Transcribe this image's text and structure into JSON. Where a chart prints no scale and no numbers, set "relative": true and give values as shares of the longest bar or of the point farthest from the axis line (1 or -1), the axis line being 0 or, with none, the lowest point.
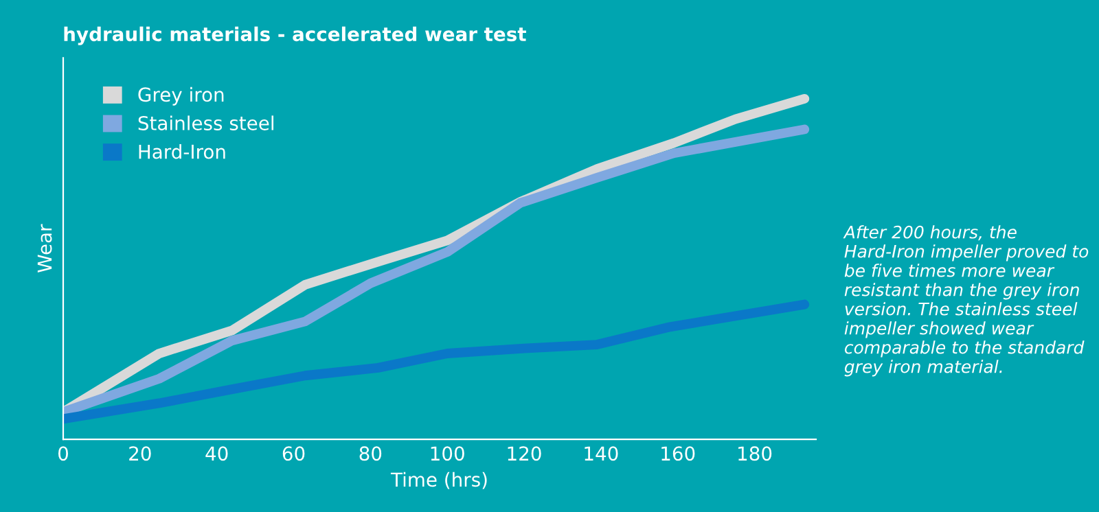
{
  "chart_data": {
    "type": "line",
    "title": "hydraulic materials - accelerated wear test",
    "xlabel": "Time (hrs)",
    "ylabel": "Wear",
    "relative": true,
    "xlim": [
      0,
      196
    ],
    "xticks": [
      0,
      20,
      40,
      60,
      80,
      100,
      120,
      140,
      160,
      180
    ],
    "grid": false,
    "legend": "top left",
    "marker": "none",
    "line_style": "solid",
    "annotations": [
      "After 200 hours, the Hard-Iron impeller proved to be five times more wear resistant than the grey iron version. The stainless steel impeller showed wear comparable to the standard grey iron material."
    ],
    "series": [
      {
        "name": "Grey iron",
        "color": "#d9d9d9",
        "x": [
          0,
          25,
          44,
          63,
          83,
          100,
          119,
          139,
          159,
          175,
          193
        ],
        "values": [
          0.08,
          0.252,
          0.32,
          0.454,
          0.525,
          0.584,
          0.697,
          0.794,
          0.87,
          0.94,
          1
        ]
      },
      {
        "name": "Stainless steel",
        "color": "#7fa8e0",
        "x": [
          0,
          25,
          44,
          63,
          80,
          100,
          119,
          139,
          159,
          193
        ],
        "values": [
          0.08,
          0.178,
          0.29,
          0.346,
          0.458,
          0.55,
          0.694,
          0.768,
          0.84,
          0.91
        ]
      },
      {
        "name": "Hard-Iron",
        "color": "#0a78c8",
        "x": [
          0,
          25,
          44,
          63,
          82,
          100,
          120,
          139,
          158,
          193
        ],
        "values": [
          0.06,
          0.106,
          0.147,
          0.187,
          0.21,
          0.252,
          0.267,
          0.278,
          0.33,
          0.396
        ]
      }
    ]
  }
}
